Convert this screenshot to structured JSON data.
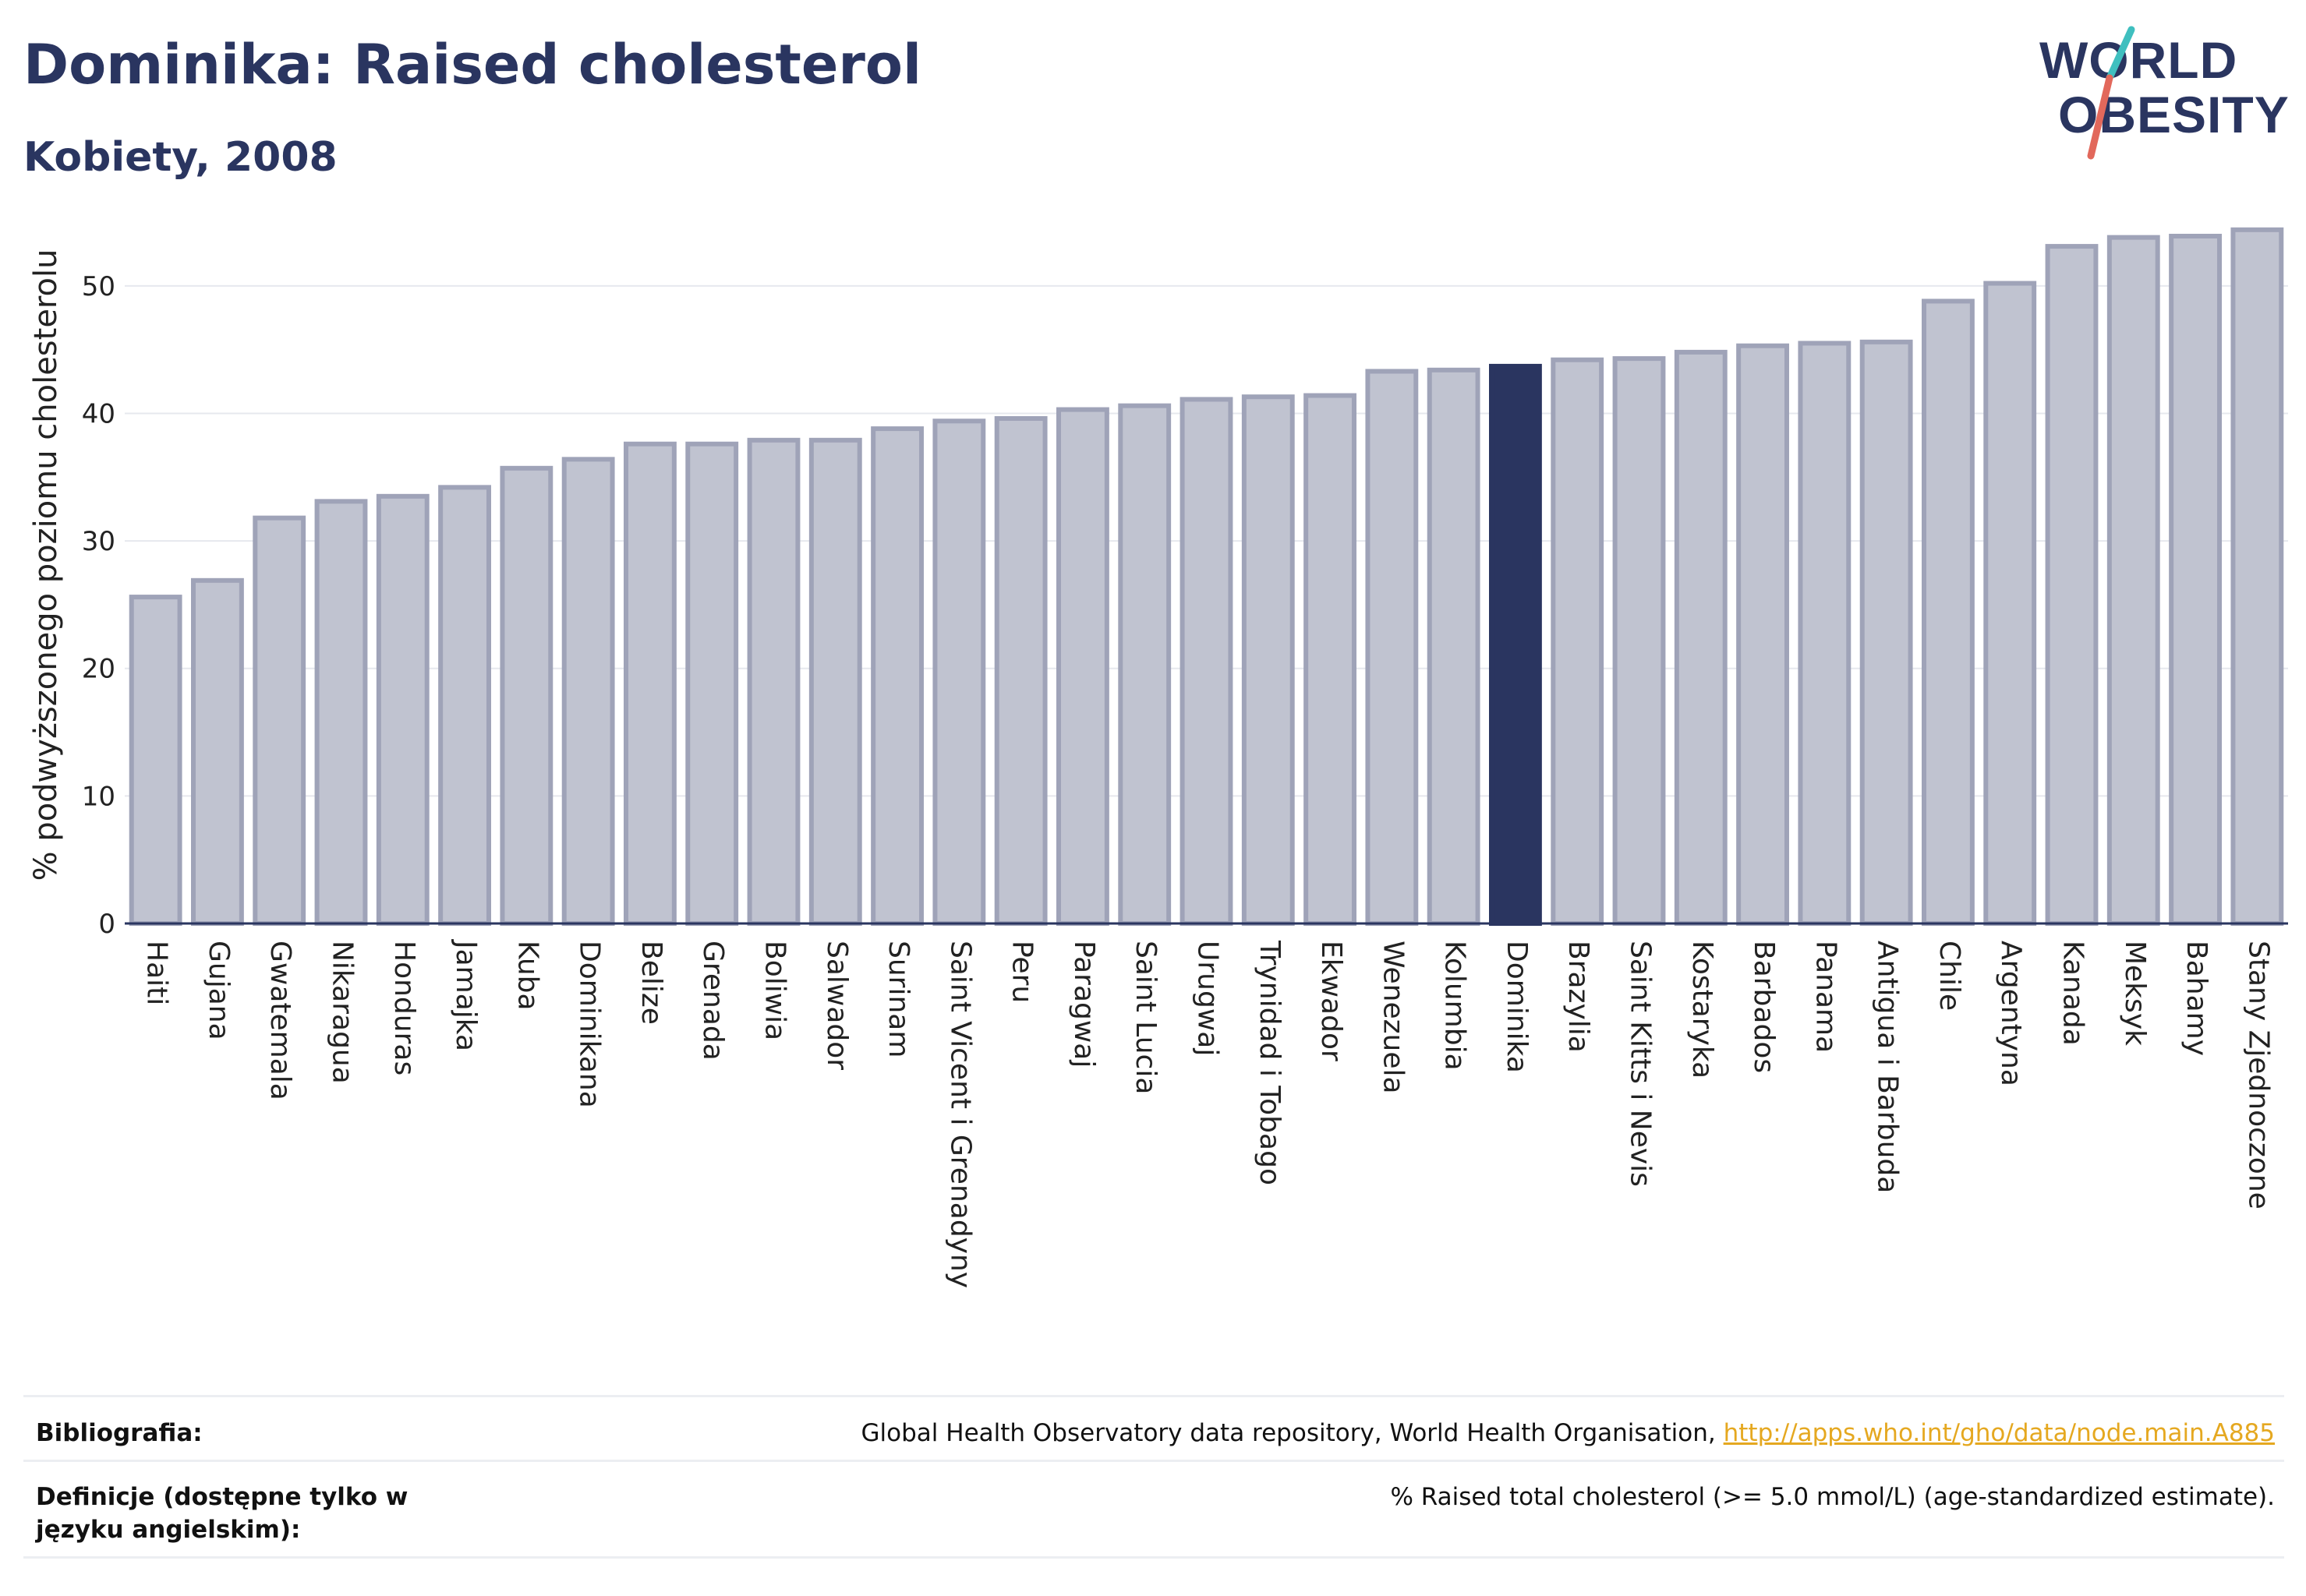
{
  "title": "Dominika: Raised cholesterol",
  "subtitle": "Kobiety, 2008",
  "logo": {
    "line1": "WORLD",
    "line2": "OBESITY"
  },
  "colors": {
    "bar": "#c0c3d0",
    "bar_border": "#9fa3b8",
    "highlight": "#2a3560",
    "title": "#2a3560",
    "logo_slash_red": "#e2685b",
    "logo_slash_teal": "#3fbfbf",
    "link": "#e5a820",
    "grid": "#e6e8ee"
  },
  "chart_data": {
    "type": "bar",
    "ylabel": "% podwyższonego poziomu cholesterolu",
    "ylim": [
      0,
      55
    ],
    "yticks": [
      0,
      10,
      20,
      30,
      40,
      50
    ],
    "grid": true,
    "highlight": "Dominika",
    "categories": [
      "Haiti",
      "Gujana",
      "Gwatemala",
      "Nikaragua",
      "Honduras",
      "Jamajka",
      "Kuba",
      "Dominikana",
      "Belize",
      "Grenada",
      "Boliwia",
      "Salwador",
      "Surinam",
      "Saint Vicent i Grenadyny",
      "Peru",
      "Paragwaj",
      "Saint Lucia",
      "Urugwaj",
      "Trynidad i Tobago",
      "Ekwador",
      "Wenezuela",
      "Kolumbia",
      "Dominika",
      "Brazylia",
      "Saint Kitts i Nevis",
      "Kostaryka",
      "Barbados",
      "Panama",
      "Antigua i Barbuda",
      "Chile",
      "Argentyna",
      "Kanada",
      "Meksyk",
      "Bahamy",
      "Stany Zjednoczone"
    ],
    "values": [
      25.6,
      26.9,
      31.8,
      33.1,
      33.5,
      34.2,
      35.7,
      36.4,
      37.6,
      37.6,
      37.9,
      37.9,
      38.8,
      39.4,
      39.6,
      40.3,
      40.6,
      41.1,
      41.3,
      41.4,
      43.3,
      43.4,
      43.7,
      44.2,
      44.3,
      44.8,
      45.3,
      45.5,
      45.6,
      48.8,
      50.2,
      53.1,
      53.8,
      53.9,
      54.4
    ]
  },
  "footer": {
    "bibliography_label": "Bibliografia:",
    "bibliography_text": "Global Health Observatory data repository, World Health Organisation, ",
    "bibliography_link": "http://apps.who.int/gho/data/node.main.A885",
    "definitions_label": "Definicje (dostępne tylko w języku angielskim):",
    "definitions_text": "% Raised total cholesterol (>= 5.0 mmol/L) (age-standardized estimate)."
  }
}
